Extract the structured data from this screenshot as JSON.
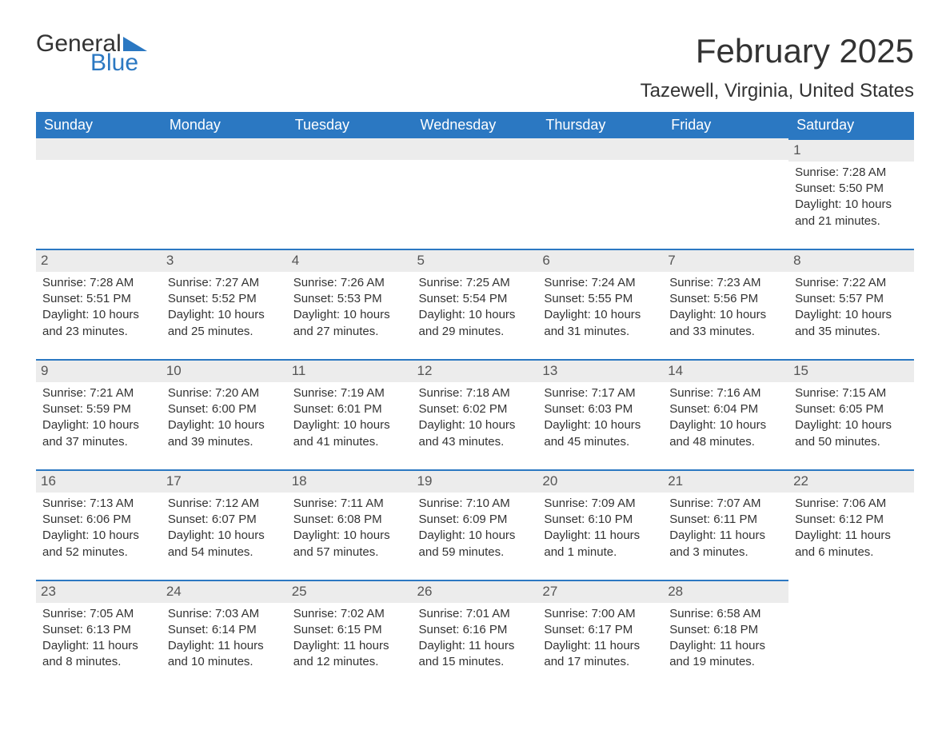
{
  "logo": {
    "word1": "General",
    "word2": "Blue",
    "accent_color": "#2b78c2"
  },
  "title": "February 2025",
  "location": "Tazewell, Virginia, United States",
  "colors": {
    "header_bg": "#2b78c2",
    "header_text": "#ffffff",
    "daynum_bg": "#ececec",
    "daynum_border": "#2b78c2",
    "text": "#333333"
  },
  "weekdays": [
    "Sunday",
    "Monday",
    "Tuesday",
    "Wednesday",
    "Thursday",
    "Friday",
    "Saturday"
  ],
  "weeks": [
    [
      null,
      null,
      null,
      null,
      null,
      null,
      {
        "day": "1",
        "sunrise": "Sunrise: 7:28 AM",
        "sunset": "Sunset: 5:50 PM",
        "daylight1": "Daylight: 10 hours",
        "daylight2": "and 21 minutes."
      }
    ],
    [
      {
        "day": "2",
        "sunrise": "Sunrise: 7:28 AM",
        "sunset": "Sunset: 5:51 PM",
        "daylight1": "Daylight: 10 hours",
        "daylight2": "and 23 minutes."
      },
      {
        "day": "3",
        "sunrise": "Sunrise: 7:27 AM",
        "sunset": "Sunset: 5:52 PM",
        "daylight1": "Daylight: 10 hours",
        "daylight2": "and 25 minutes."
      },
      {
        "day": "4",
        "sunrise": "Sunrise: 7:26 AM",
        "sunset": "Sunset: 5:53 PM",
        "daylight1": "Daylight: 10 hours",
        "daylight2": "and 27 minutes."
      },
      {
        "day": "5",
        "sunrise": "Sunrise: 7:25 AM",
        "sunset": "Sunset: 5:54 PM",
        "daylight1": "Daylight: 10 hours",
        "daylight2": "and 29 minutes."
      },
      {
        "day": "6",
        "sunrise": "Sunrise: 7:24 AM",
        "sunset": "Sunset: 5:55 PM",
        "daylight1": "Daylight: 10 hours",
        "daylight2": "and 31 minutes."
      },
      {
        "day": "7",
        "sunrise": "Sunrise: 7:23 AM",
        "sunset": "Sunset: 5:56 PM",
        "daylight1": "Daylight: 10 hours",
        "daylight2": "and 33 minutes."
      },
      {
        "day": "8",
        "sunrise": "Sunrise: 7:22 AM",
        "sunset": "Sunset: 5:57 PM",
        "daylight1": "Daylight: 10 hours",
        "daylight2": "and 35 minutes."
      }
    ],
    [
      {
        "day": "9",
        "sunrise": "Sunrise: 7:21 AM",
        "sunset": "Sunset: 5:59 PM",
        "daylight1": "Daylight: 10 hours",
        "daylight2": "and 37 minutes."
      },
      {
        "day": "10",
        "sunrise": "Sunrise: 7:20 AM",
        "sunset": "Sunset: 6:00 PM",
        "daylight1": "Daylight: 10 hours",
        "daylight2": "and 39 minutes."
      },
      {
        "day": "11",
        "sunrise": "Sunrise: 7:19 AM",
        "sunset": "Sunset: 6:01 PM",
        "daylight1": "Daylight: 10 hours",
        "daylight2": "and 41 minutes."
      },
      {
        "day": "12",
        "sunrise": "Sunrise: 7:18 AM",
        "sunset": "Sunset: 6:02 PM",
        "daylight1": "Daylight: 10 hours",
        "daylight2": "and 43 minutes."
      },
      {
        "day": "13",
        "sunrise": "Sunrise: 7:17 AM",
        "sunset": "Sunset: 6:03 PM",
        "daylight1": "Daylight: 10 hours",
        "daylight2": "and 45 minutes."
      },
      {
        "day": "14",
        "sunrise": "Sunrise: 7:16 AM",
        "sunset": "Sunset: 6:04 PM",
        "daylight1": "Daylight: 10 hours",
        "daylight2": "and 48 minutes."
      },
      {
        "day": "15",
        "sunrise": "Sunrise: 7:15 AM",
        "sunset": "Sunset: 6:05 PM",
        "daylight1": "Daylight: 10 hours",
        "daylight2": "and 50 minutes."
      }
    ],
    [
      {
        "day": "16",
        "sunrise": "Sunrise: 7:13 AM",
        "sunset": "Sunset: 6:06 PM",
        "daylight1": "Daylight: 10 hours",
        "daylight2": "and 52 minutes."
      },
      {
        "day": "17",
        "sunrise": "Sunrise: 7:12 AM",
        "sunset": "Sunset: 6:07 PM",
        "daylight1": "Daylight: 10 hours",
        "daylight2": "and 54 minutes."
      },
      {
        "day": "18",
        "sunrise": "Sunrise: 7:11 AM",
        "sunset": "Sunset: 6:08 PM",
        "daylight1": "Daylight: 10 hours",
        "daylight2": "and 57 minutes."
      },
      {
        "day": "19",
        "sunrise": "Sunrise: 7:10 AM",
        "sunset": "Sunset: 6:09 PM",
        "daylight1": "Daylight: 10 hours",
        "daylight2": "and 59 minutes."
      },
      {
        "day": "20",
        "sunrise": "Sunrise: 7:09 AM",
        "sunset": "Sunset: 6:10 PM",
        "daylight1": "Daylight: 11 hours",
        "daylight2": "and 1 minute."
      },
      {
        "day": "21",
        "sunrise": "Sunrise: 7:07 AM",
        "sunset": "Sunset: 6:11 PM",
        "daylight1": "Daylight: 11 hours",
        "daylight2": "and 3 minutes."
      },
      {
        "day": "22",
        "sunrise": "Sunrise: 7:06 AM",
        "sunset": "Sunset: 6:12 PM",
        "daylight1": "Daylight: 11 hours",
        "daylight2": "and 6 minutes."
      }
    ],
    [
      {
        "day": "23",
        "sunrise": "Sunrise: 7:05 AM",
        "sunset": "Sunset: 6:13 PM",
        "daylight1": "Daylight: 11 hours",
        "daylight2": "and 8 minutes."
      },
      {
        "day": "24",
        "sunrise": "Sunrise: 7:03 AM",
        "sunset": "Sunset: 6:14 PM",
        "daylight1": "Daylight: 11 hours",
        "daylight2": "and 10 minutes."
      },
      {
        "day": "25",
        "sunrise": "Sunrise: 7:02 AM",
        "sunset": "Sunset: 6:15 PM",
        "daylight1": "Daylight: 11 hours",
        "daylight2": "and 12 minutes."
      },
      {
        "day": "26",
        "sunrise": "Sunrise: 7:01 AM",
        "sunset": "Sunset: 6:16 PM",
        "daylight1": "Daylight: 11 hours",
        "daylight2": "and 15 minutes."
      },
      {
        "day": "27",
        "sunrise": "Sunrise: 7:00 AM",
        "sunset": "Sunset: 6:17 PM",
        "daylight1": "Daylight: 11 hours",
        "daylight2": "and 17 minutes."
      },
      {
        "day": "28",
        "sunrise": "Sunrise: 6:58 AM",
        "sunset": "Sunset: 6:18 PM",
        "daylight1": "Daylight: 11 hours",
        "daylight2": "and 19 minutes."
      },
      null
    ]
  ]
}
